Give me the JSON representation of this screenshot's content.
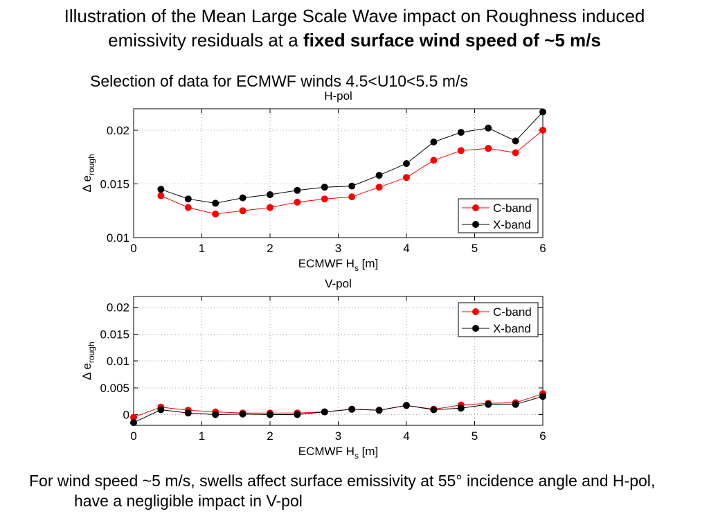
{
  "slide": {
    "title": {
      "line1": "Illustration of the Mean Large Scale Wave impact on Roughness induced",
      "line2_plain": "emissivity residuals at a ",
      "line2_bold": "fixed surface wind speed of ~5 m/s"
    },
    "subtitle": "Selection of data for ECMWF winds 4.5<U10<5.5 m/s",
    "footer": {
      "line1": "For wind speed ~5 m/s, swells affect surface emissivity at 55° incidence angle and H-pol,",
      "line2": "have a negligible impact in V-pol"
    }
  },
  "colors": {
    "background": "#ffffff",
    "text": "#000000",
    "c_band": "#ff0000",
    "x_band": "#000000"
  },
  "chart_data": [
    {
      "type": "line",
      "title": "H-pol",
      "xlabel": {
        "text": "ECMWF H",
        "sub": "s",
        "suffix": " [m]"
      },
      "ylabel": {
        "text": "Δ e",
        "sub": "rough"
      },
      "xlim": [
        0,
        6
      ],
      "ylim": [
        0.01,
        0.022
      ],
      "xticks": [
        0,
        1,
        2,
        3,
        4,
        5,
        6
      ],
      "xtick_labels": [
        "0",
        "1",
        "2",
        "3",
        "4",
        "5",
        "6"
      ],
      "yticks": [
        0.01,
        0.015,
        0.02
      ],
      "ytick_labels": [
        "0.01",
        "0.015",
        "0.02"
      ],
      "grid": true,
      "legend_position": "bottom-right",
      "x": [
        0.4,
        0.8,
        1.2,
        1.6,
        2.0,
        2.4,
        2.8,
        3.2,
        3.6,
        4.0,
        4.4,
        4.8,
        5.2,
        5.6,
        6.0
      ],
      "series": [
        {
          "name": "C-band",
          "color": "#ff0000",
          "marker": "circle",
          "values": [
            0.0139,
            0.0128,
            0.0122,
            0.0125,
            0.0128,
            0.0133,
            0.0136,
            0.0138,
            0.0147,
            0.0156,
            0.0172,
            0.0181,
            0.0183,
            0.0179,
            0.02
          ]
        },
        {
          "name": "X-band",
          "color": "#000000",
          "marker": "circle",
          "values": [
            0.0145,
            0.0136,
            0.0132,
            0.0137,
            0.014,
            0.0144,
            0.0147,
            0.0148,
            0.0158,
            0.0169,
            0.0189,
            0.0198,
            0.0202,
            0.019,
            0.0217
          ]
        }
      ]
    },
    {
      "type": "line",
      "title": "V-pol",
      "xlabel": {
        "text": "ECMWF H",
        "sub": "s",
        "suffix": " [m]"
      },
      "ylabel": {
        "text": "Δ e",
        "sub": "rough"
      },
      "xlim": [
        0,
        6
      ],
      "ylim": [
        -0.002,
        0.022
      ],
      "xticks": [
        0,
        1,
        2,
        3,
        4,
        5,
        6
      ],
      "xtick_labels": [
        "0",
        "1",
        "2",
        "3",
        "4",
        "5",
        "6"
      ],
      "yticks": [
        0,
        0.005,
        0.01,
        0.015,
        0.02
      ],
      "ytick_labels": [
        "0",
        "0.005",
        "0.01",
        "0.015",
        "0.02"
      ],
      "grid": true,
      "legend_position": "top-right",
      "x": [
        0,
        0.4,
        0.8,
        1.2,
        1.6,
        2.0,
        2.4,
        2.8,
        3.2,
        3.6,
        4.0,
        4.4,
        4.8,
        5.2,
        5.6,
        6.0
      ],
      "series": [
        {
          "name": "C-band",
          "color": "#ff0000",
          "marker": "circle",
          "values": [
            -0.0005,
            0.0014,
            0.0008,
            0.0005,
            0.0003,
            0.0003,
            0.0003,
            0.0005,
            0.001,
            0.0008,
            0.0017,
            0.001,
            0.0018,
            0.0021,
            0.0022,
            0.0039
          ]
        },
        {
          "name": "X-band",
          "color": "#000000",
          "marker": "circle",
          "values": [
            -0.0015,
            0.0009,
            0.0003,
            0,
            0.0001,
            0,
            0,
            0.0005,
            0.001,
            0.0008,
            0.0017,
            0.0009,
            0.0012,
            0.0019,
            0.0019,
            0.0034
          ]
        }
      ]
    }
  ]
}
